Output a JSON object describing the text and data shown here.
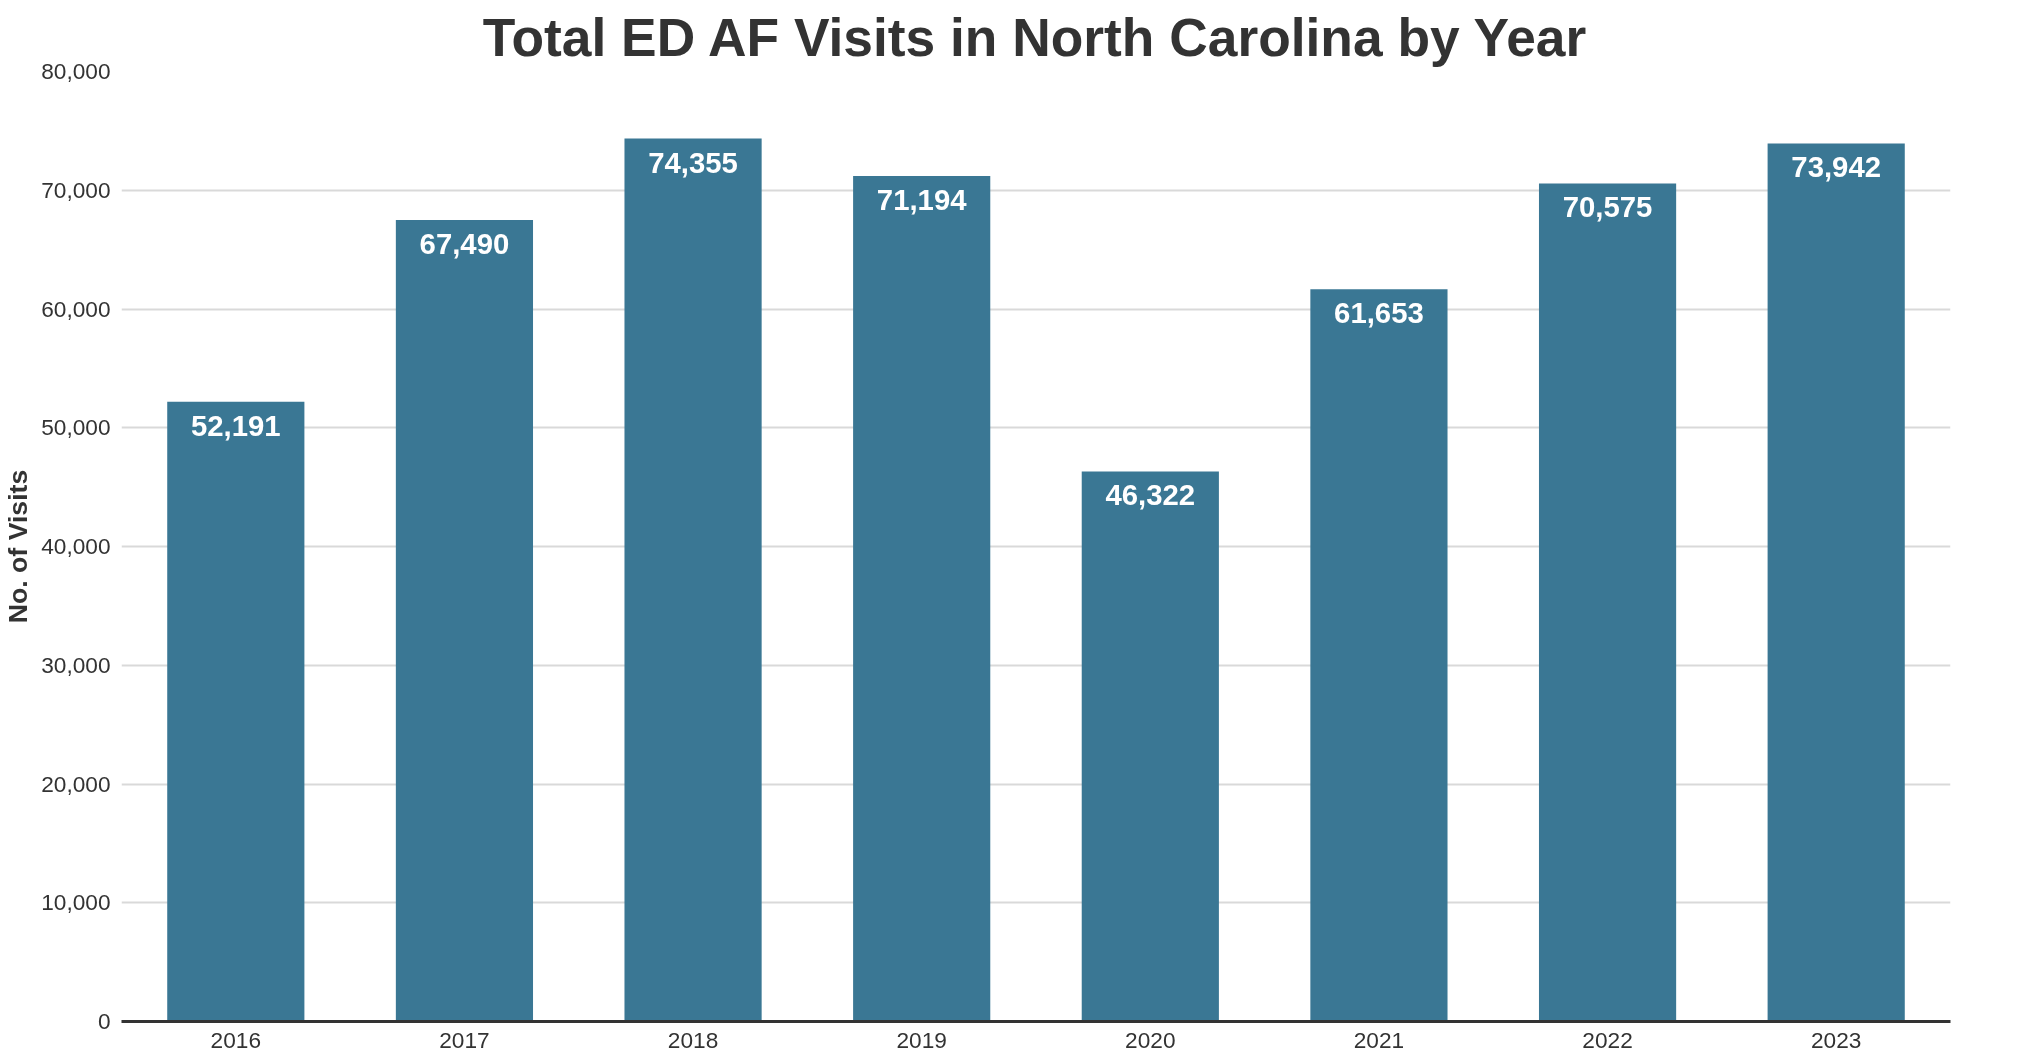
{
  "chart_data": {
    "type": "bar",
    "title": "Total ED AF Visits in North Carolina by Year",
    "ylabel": "No. of Visits",
    "categories": [
      "2016",
      "2017",
      "2018",
      "2019",
      "2020",
      "2021",
      "2022",
      "2023"
    ],
    "values": [
      52191,
      67490,
      74355,
      71194,
      46322,
      61653,
      70575,
      73942
    ],
    "value_labels": [
      "52,191",
      "67,490",
      "74,355",
      "71,194",
      "46,322",
      "61,653",
      "70,575",
      "73,942"
    ],
    "color": "#3a7794",
    "ylim": [
      0,
      80000
    ],
    "yticks": [
      {
        "value": 0,
        "label": "0"
      },
      {
        "value": 10000,
        "label": "10,000"
      },
      {
        "value": 20000,
        "label": "20,000"
      },
      {
        "value": 30000,
        "label": "30,000"
      },
      {
        "value": 40000,
        "label": "40,000"
      },
      {
        "value": 50000,
        "label": "50,000"
      },
      {
        "value": 60000,
        "label": "60,000"
      },
      {
        "value": 70000,
        "label": "70,000"
      },
      {
        "value": 80000,
        "label": "80,000"
      }
    ],
    "grid": "y"
  }
}
